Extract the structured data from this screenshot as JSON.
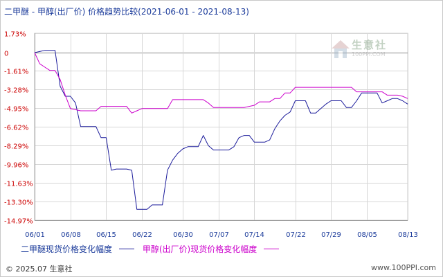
{
  "title": "二甲醚 - 甲醇(出厂价) 价格趋势比较(2021-06-01 - 2021-08-13)",
  "watermark": {
    "text": "生意社",
    "url": "100PPI.COM"
  },
  "footer": {
    "copyright": "© 2025.07 生意社",
    "site": "www.100PPI.com"
  },
  "colors": {
    "series1": "#1a1a9a",
    "series2": "#cc00cc",
    "ytick": "#cc0000",
    "xtick": "#1a3a9a",
    "grid": "#d6d6d6"
  },
  "chart_data": {
    "type": "line",
    "title": "二甲醚 - 甲醇(出厂价) 价格趋势比较(2021-06-01 - 2021-08-13)",
    "y_unit": "%",
    "ylim": [
      -14.97,
      1.73
    ],
    "yticks": [
      "1.73%",
      "0",
      "-1.61%",
      "-3.28%",
      "-4.95%",
      "-6.62%",
      "-8.29%",
      "-9.96%",
      "-11.63%",
      "-13.30%",
      "-14.97%"
    ],
    "ytick_values": [
      1.73,
      0,
      -1.61,
      -3.28,
      -4.95,
      -6.62,
      -8.29,
      -9.96,
      -11.63,
      -13.3,
      -14.97
    ],
    "xticks": [
      "06/01",
      "06/08",
      "06/15",
      "06/22",
      "06/30",
      "07/07",
      "07/14",
      "07/22",
      "07/29",
      "08/05",
      "08/13"
    ],
    "grid": true,
    "legend_position": "bottom",
    "series": [
      {
        "name": "二甲醚现货价格变化幅度",
        "color": "#1a1a9a",
        "points": [
          [
            "2021-06-01",
            0
          ],
          [
            "2021-06-02",
            0.1
          ],
          [
            "2021-06-03",
            0.2
          ],
          [
            "2021-06-04",
            0.2
          ],
          [
            "2021-06-05",
            0.2
          ],
          [
            "2021-06-06",
            -3.0
          ],
          [
            "2021-06-07",
            -3.9
          ],
          [
            "2021-06-08",
            -3.9
          ],
          [
            "2021-06-09",
            -4.5
          ],
          [
            "2021-06-10",
            -6.6
          ],
          [
            "2021-06-12",
            -6.6
          ],
          [
            "2021-06-13",
            -6.6
          ],
          [
            "2021-06-14",
            -7.6
          ],
          [
            "2021-06-15",
            -7.6
          ],
          [
            "2021-06-16",
            -10.5
          ],
          [
            "2021-06-17",
            -10.4
          ],
          [
            "2021-06-19",
            -10.4
          ],
          [
            "2021-06-20",
            -10.5
          ],
          [
            "2021-06-21",
            -14.0
          ],
          [
            "2021-06-22",
            -14.0
          ],
          [
            "2021-06-23",
            -14.0
          ],
          [
            "2021-06-24",
            -13.6
          ],
          [
            "2021-06-26",
            -13.6
          ],
          [
            "2021-06-27",
            -10.5
          ],
          [
            "2021-06-28",
            -9.6
          ],
          [
            "2021-06-29",
            -9.0
          ],
          [
            "2021-06-30",
            -8.6
          ],
          [
            "2021-07-01",
            -8.4
          ],
          [
            "2021-07-03",
            -8.4
          ],
          [
            "2021-07-04",
            -7.4
          ],
          [
            "2021-07-05",
            -8.3
          ],
          [
            "2021-07-06",
            -8.7
          ],
          [
            "2021-07-07",
            -8.7
          ],
          [
            "2021-07-09",
            -8.7
          ],
          [
            "2021-07-10",
            -8.4
          ],
          [
            "2021-07-11",
            -7.6
          ],
          [
            "2021-07-12",
            -7.4
          ],
          [
            "2021-07-13",
            -7.4
          ],
          [
            "2021-07-14",
            -8.0
          ],
          [
            "2021-07-15",
            -8.0
          ],
          [
            "2021-07-16",
            -8.0
          ],
          [
            "2021-07-17",
            -7.8
          ],
          [
            "2021-07-18",
            -6.8
          ],
          [
            "2021-07-19",
            -6.1
          ],
          [
            "2021-07-20",
            -5.6
          ],
          [
            "2021-07-21",
            -5.3
          ],
          [
            "2021-07-22",
            -4.3
          ],
          [
            "2021-07-23",
            -4.3
          ],
          [
            "2021-07-24",
            -4.3
          ],
          [
            "2021-07-25",
            -5.4
          ],
          [
            "2021-07-26",
            -5.4
          ],
          [
            "2021-07-27",
            -5.0
          ],
          [
            "2021-07-28",
            -4.6
          ],
          [
            "2021-07-29",
            -4.3
          ],
          [
            "2021-07-30",
            -4.3
          ],
          [
            "2021-07-31",
            -4.3
          ],
          [
            "2021-08-01",
            -4.9
          ],
          [
            "2021-08-02",
            -4.9
          ],
          [
            "2021-08-03",
            -4.3
          ],
          [
            "2021-08-04",
            -3.6
          ],
          [
            "2021-08-05",
            -3.6
          ],
          [
            "2021-08-06",
            -3.6
          ],
          [
            "2021-08-07",
            -3.6
          ],
          [
            "2021-08-08",
            -4.5
          ],
          [
            "2021-08-09",
            -4.3
          ],
          [
            "2021-08-10",
            -4.1
          ],
          [
            "2021-08-11",
            -4.1
          ],
          [
            "2021-08-12",
            -4.3
          ],
          [
            "2021-08-13",
            -4.6
          ]
        ]
      },
      {
        "name": "甲醇(出厂价)现货价格变化幅度",
        "color": "#cc00cc",
        "points": [
          [
            "2021-06-01",
            0
          ],
          [
            "2021-06-02",
            -1.0
          ],
          [
            "2021-06-03",
            -1.3
          ],
          [
            "2021-06-04",
            -1.6
          ],
          [
            "2021-06-05",
            -1.6
          ],
          [
            "2021-06-06",
            -2.4
          ],
          [
            "2021-06-07",
            -3.8
          ],
          [
            "2021-06-08",
            -5.0
          ],
          [
            "2021-06-10",
            -5.2
          ],
          [
            "2021-06-11",
            -5.2
          ],
          [
            "2021-06-12",
            -5.2
          ],
          [
            "2021-06-13",
            -5.2
          ],
          [
            "2021-06-14",
            -4.8
          ],
          [
            "2021-06-15",
            -4.8
          ],
          [
            "2021-06-17",
            -4.8
          ],
          [
            "2021-06-18",
            -4.8
          ],
          [
            "2021-06-19",
            -4.8
          ],
          [
            "2021-06-20",
            -5.4
          ],
          [
            "2021-06-21",
            -5.2
          ],
          [
            "2021-06-22",
            -5.0
          ],
          [
            "2021-06-23",
            -5.0
          ],
          [
            "2021-06-27",
            -5.0
          ],
          [
            "2021-06-28",
            -4.2
          ],
          [
            "2021-07-04",
            -4.2
          ],
          [
            "2021-07-05",
            -4.5
          ],
          [
            "2021-07-06",
            -4.9
          ],
          [
            "2021-07-12",
            -4.9
          ],
          [
            "2021-07-13",
            -4.8
          ],
          [
            "2021-07-14",
            -4.7
          ],
          [
            "2021-07-15",
            -4.4
          ],
          [
            "2021-07-16",
            -4.4
          ],
          [
            "2021-07-17",
            -4.4
          ],
          [
            "2021-07-18",
            -4.1
          ],
          [
            "2021-07-19",
            -4.1
          ],
          [
            "2021-07-20",
            -3.6
          ],
          [
            "2021-07-21",
            -3.6
          ],
          [
            "2021-07-22",
            -3.1
          ],
          [
            "2021-08-02",
            -3.1
          ],
          [
            "2021-08-03",
            -3.5
          ],
          [
            "2021-08-04",
            -3.5
          ],
          [
            "2021-08-08",
            -3.5
          ],
          [
            "2021-08-09",
            -3.8
          ],
          [
            "2021-08-10",
            -3.8
          ],
          [
            "2021-08-11",
            -3.8
          ],
          [
            "2021-08-12",
            -3.9
          ],
          [
            "2021-08-13",
            -4.1
          ]
        ]
      }
    ]
  }
}
